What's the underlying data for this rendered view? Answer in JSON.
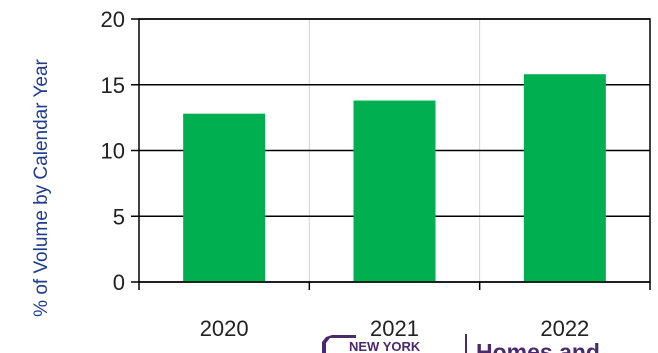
{
  "chart_data": {
    "type": "bar",
    "categories": [
      "2020",
      "2021",
      "2022"
    ],
    "values": [
      12.8,
      13.8,
      15.8
    ],
    "ylabel": "% of Volume by Calendar Year",
    "ylim": [
      0,
      20
    ],
    "yticks": [
      0,
      5,
      10,
      15,
      20
    ],
    "grid": "horizontal",
    "bar_color": "#00b050"
  },
  "logo": {
    "state": "NEW YORK",
    "brand": "Homes and"
  }
}
